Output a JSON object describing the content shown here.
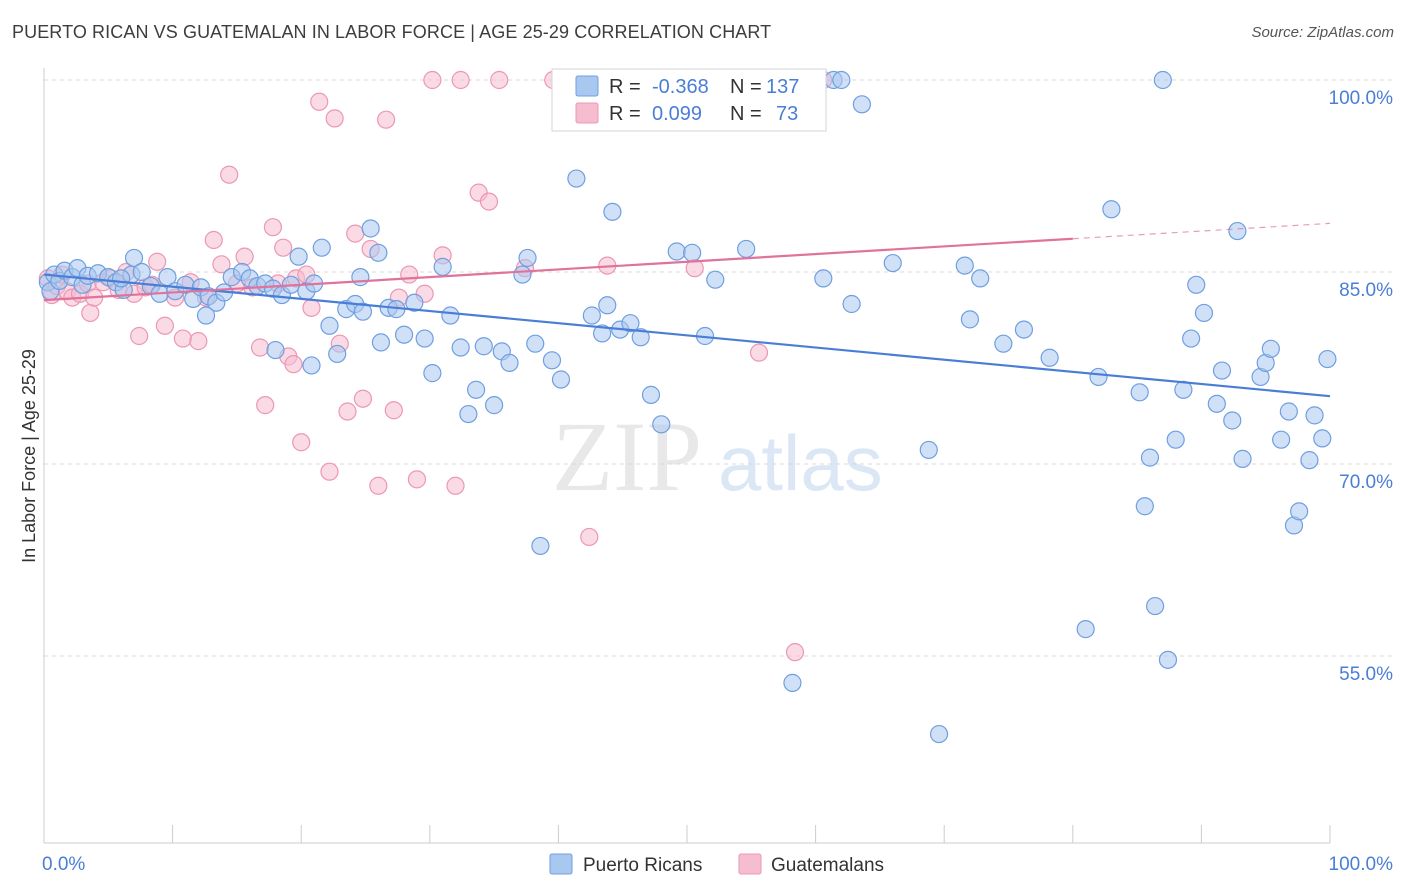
{
  "header": {
    "title": "PUERTO RICAN VS GUATEMALAN IN LABOR FORCE | AGE 25-29 CORRELATION CHART",
    "source": "Source: ZipAtlas.com"
  },
  "watermark": {
    "zip": "ZIP",
    "atlas": "atlas"
  },
  "colors": {
    "blue": "#4a7ed6",
    "blue_fill": "#a9c8f0",
    "blue_stroke": "#6f9fe0",
    "pink": "#e0729b",
    "pink_fill": "#f6bccf",
    "pink_stroke": "#ec97b4",
    "grid": "#d9d9d9",
    "tick_text": "#4a7ed6"
  },
  "legend_top": {
    "rows": [
      {
        "r_label": "R =",
        "r_value": "-0.368",
        "n_label": "N =",
        "n_value": "137"
      },
      {
        "r_label": "R =",
        "r_value": "0.099",
        "n_label": "N =",
        "n_value": "73"
      }
    ]
  },
  "chart_data": {
    "type": "scatter",
    "ylabel": "In Labor Force | Age 25-29",
    "xlim": [
      0,
      100
    ],
    "ylim": [
      40,
      102
    ],
    "x_tick_labels": [
      "0.0%",
      "100.0%"
    ],
    "y_ticks": [
      55,
      70,
      85,
      100
    ],
    "y_tick_labels": [
      "55.0%",
      "70.0%",
      "85.0%",
      "100.0%"
    ],
    "grid": "horizontal dashed",
    "legend": [
      "Puerto Ricans",
      "Guatemalans"
    ],
    "series": [
      {
        "name": "Puerto Ricans",
        "color": "#4a7ed6",
        "trend": {
          "x0": 0,
          "y0": 84.8,
          "x1": 100,
          "y1": 75.3
        },
        "points": [
          [
            0.3,
            84.2
          ],
          [
            0.5,
            83.5
          ],
          [
            0.8,
            84.8
          ],
          [
            1.2,
            84.3
          ],
          [
            1.6,
            85.1
          ],
          [
            2.2,
            84.6
          ],
          [
            2.6,
            85.3
          ],
          [
            3.0,
            84.0
          ],
          [
            3.4,
            84.7
          ],
          [
            4.2,
            84.9
          ],
          [
            5.0,
            84.6
          ],
          [
            5.6,
            84.2
          ],
          [
            6.2,
            83.6
          ],
          [
            6.8,
            84.8
          ],
          [
            7.0,
            86.1
          ],
          [
            7.6,
            85.0
          ],
          [
            8.3,
            83.9
          ],
          [
            9.0,
            83.3
          ],
          [
            9.6,
            84.6
          ],
          [
            10.2,
            83.5
          ],
          [
            11.0,
            84.0
          ],
          [
            11.6,
            82.9
          ],
          [
            12.2,
            83.8
          ],
          [
            12.8,
            83.1
          ],
          [
            13.4,
            82.6
          ],
          [
            14.0,
            83.4
          ],
          [
            14.6,
            84.6
          ],
          [
            15.4,
            85.0
          ],
          [
            16.0,
            84.5
          ],
          [
            16.6,
            83.9
          ],
          [
            17.2,
            84.1
          ],
          [
            17.8,
            83.7
          ],
          [
            18.5,
            83.2
          ],
          [
            19.2,
            84.0
          ],
          [
            19.8,
            86.2
          ],
          [
            20.4,
            83.5
          ],
          [
            21.0,
            84.1
          ],
          [
            21.6,
            86.9
          ],
          [
            22.2,
            80.8
          ],
          [
            22.8,
            78.6
          ],
          [
            23.5,
            82.1
          ],
          [
            24.2,
            82.5
          ],
          [
            24.8,
            81.9
          ],
          [
            25.4,
            88.4
          ],
          [
            26.2,
            79.5
          ],
          [
            26.8,
            82.2
          ],
          [
            27.4,
            82.1
          ],
          [
            28.0,
            80.1
          ],
          [
            28.8,
            82.6
          ],
          [
            29.6,
            79.8
          ],
          [
            30.2,
            77.1
          ],
          [
            31.0,
            85.4
          ],
          [
            31.6,
            81.6
          ],
          [
            32.4,
            79.1
          ],
          [
            33.0,
            73.9
          ],
          [
            33.6,
            75.8
          ],
          [
            34.2,
            79.2
          ],
          [
            35.0,
            74.6
          ],
          [
            35.6,
            78.8
          ],
          [
            36.2,
            77.9
          ],
          [
            37.2,
            84.8
          ],
          [
            37.6,
            86.1
          ],
          [
            38.2,
            79.4
          ],
          [
            38.6,
            63.6
          ],
          [
            39.5,
            78.1
          ],
          [
            40.2,
            76.6
          ],
          [
            41.4,
            92.3
          ],
          [
            42.6,
            81.6
          ],
          [
            43.4,
            80.2
          ],
          [
            43.8,
            82.4
          ],
          [
            44.2,
            89.7
          ],
          [
            44.8,
            80.5
          ],
          [
            45.6,
            81.0
          ],
          [
            46.4,
            79.9
          ],
          [
            47.2,
            75.4
          ],
          [
            48.0,
            73.1
          ],
          [
            49.2,
            86.6
          ],
          [
            50.4,
            86.5
          ],
          [
            51.4,
            80.0
          ],
          [
            52.2,
            84.4
          ],
          [
            54.6,
            86.8
          ],
          [
            58.2,
            52.9
          ],
          [
            60.6,
            84.5
          ],
          [
            62.8,
            82.5
          ],
          [
            63.6,
            98.1
          ],
          [
            66.0,
            85.7
          ],
          [
            68.8,
            71.1
          ],
          [
            69.6,
            48.9
          ],
          [
            71.6,
            85.5
          ],
          [
            72.0,
            81.3
          ],
          [
            72.8,
            84.5
          ],
          [
            74.6,
            79.4
          ],
          [
            76.2,
            80.5
          ],
          [
            78.2,
            78.3
          ],
          [
            81.0,
            57.1
          ],
          [
            82.0,
            76.8
          ],
          [
            83.0,
            89.9
          ],
          [
            85.2,
            75.6
          ],
          [
            85.6,
            66.7
          ],
          [
            86.0,
            70.5
          ],
          [
            86.4,
            58.9
          ],
          [
            87.0,
            100.0
          ],
          [
            87.4,
            54.7
          ],
          [
            88.0,
            71.9
          ],
          [
            88.6,
            75.8
          ],
          [
            89.2,
            79.8
          ],
          [
            89.6,
            84.0
          ],
          [
            90.2,
            81.8
          ],
          [
            91.2,
            74.7
          ],
          [
            91.6,
            77.3
          ],
          [
            92.4,
            73.4
          ],
          [
            92.8,
            88.2
          ],
          [
            93.2,
            70.4
          ],
          [
            94.6,
            76.8
          ],
          [
            95.0,
            77.9
          ],
          [
            95.4,
            79.0
          ],
          [
            96.2,
            71.9
          ],
          [
            96.8,
            74.1
          ],
          [
            97.2,
            65.2
          ],
          [
            97.6,
            66.3
          ],
          [
            98.4,
            70.3
          ],
          [
            98.8,
            73.8
          ],
          [
            99.4,
            72.0
          ],
          [
            99.8,
            78.2
          ],
          [
            47.6,
            100.0
          ],
          [
            57.0,
            100.0
          ],
          [
            61.4,
            100.0
          ],
          [
            62.0,
            100.0
          ],
          [
            48.4,
            100.0
          ],
          [
            24.6,
            84.6
          ],
          [
            26.0,
            86.5
          ],
          [
            18.0,
            78.9
          ],
          [
            20.8,
            77.7
          ],
          [
            12.6,
            81.6
          ],
          [
            6.0,
            84.5
          ]
        ]
      },
      {
        "name": "Guatemalans",
        "color": "#e0729b",
        "trend": {
          "x0": 0,
          "y0": 82.8,
          "x1": 80.0,
          "y1": 87.6,
          "dash_to_x": 100,
          "dash_to_y": 88.8
        },
        "points": [
          [
            0.3,
            84.5
          ],
          [
            0.6,
            83.2
          ],
          [
            1.0,
            83.9
          ],
          [
            1.4,
            84.8
          ],
          [
            1.8,
            83.5
          ],
          [
            2.2,
            83.0
          ],
          [
            2.8,
            83.3
          ],
          [
            3.4,
            84.1
          ],
          [
            3.6,
            81.8
          ],
          [
            3.9,
            83.0
          ],
          [
            4.6,
            84.2
          ],
          [
            5.2,
            84.5
          ],
          [
            5.8,
            83.6
          ],
          [
            6.4,
            85.0
          ],
          [
            7.0,
            83.3
          ],
          [
            7.4,
            80.0
          ],
          [
            7.9,
            83.8
          ],
          [
            8.4,
            84.0
          ],
          [
            8.8,
            85.8
          ],
          [
            9.4,
            80.8
          ],
          [
            10.2,
            83.0
          ],
          [
            10.8,
            79.8
          ],
          [
            11.4,
            84.2
          ],
          [
            12.0,
            79.6
          ],
          [
            12.6,
            83.0
          ],
          [
            13.2,
            87.5
          ],
          [
            13.8,
            85.6
          ],
          [
            14.4,
            92.6
          ],
          [
            15.0,
            84.1
          ],
          [
            15.6,
            86.2
          ],
          [
            16.2,
            83.8
          ],
          [
            16.8,
            79.1
          ],
          [
            17.2,
            74.6
          ],
          [
            17.8,
            88.5
          ],
          [
            18.2,
            84.1
          ],
          [
            18.6,
            86.9
          ],
          [
            19.0,
            78.4
          ],
          [
            19.4,
            77.8
          ],
          [
            19.6,
            84.5
          ],
          [
            20.0,
            71.7
          ],
          [
            20.4,
            84.8
          ],
          [
            20.8,
            82.2
          ],
          [
            21.4,
            98.3
          ],
          [
            22.2,
            69.4
          ],
          [
            22.6,
            97.0
          ],
          [
            23.0,
            79.4
          ],
          [
            23.6,
            74.1
          ],
          [
            24.2,
            88.0
          ],
          [
            24.8,
            75.1
          ],
          [
            25.4,
            86.8
          ],
          [
            26.0,
            68.3
          ],
          [
            26.6,
            96.9
          ],
          [
            27.2,
            74.2
          ],
          [
            27.6,
            83.0
          ],
          [
            28.4,
            84.8
          ],
          [
            29.0,
            68.8
          ],
          [
            29.6,
            83.3
          ],
          [
            30.2,
            100.0
          ],
          [
            31.0,
            86.3
          ],
          [
            32.0,
            68.3
          ],
          [
            32.4,
            100.0
          ],
          [
            33.8,
            91.2
          ],
          [
            34.6,
            90.5
          ],
          [
            35.4,
            100.0
          ],
          [
            37.4,
            85.3
          ],
          [
            39.6,
            100.0
          ],
          [
            42.4,
            64.3
          ],
          [
            43.2,
            100.0
          ],
          [
            43.8,
            85.5
          ],
          [
            55.6,
            78.7
          ],
          [
            58.4,
            55.3
          ],
          [
            60.6,
            100.0
          ],
          [
            50.6,
            85.3
          ]
        ]
      }
    ]
  }
}
